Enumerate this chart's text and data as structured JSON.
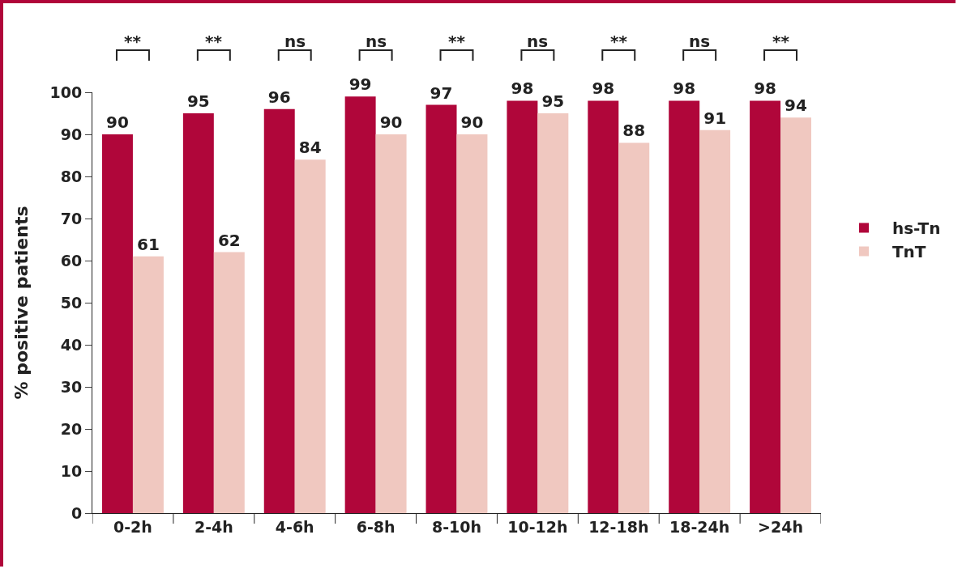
{
  "chart_data": {
    "type": "bar",
    "ylabel": "% positive patients",
    "categories": [
      "0-2h",
      "2-4h",
      "4-6h",
      "6-8h",
      "8-10h",
      "10-12h",
      "12-18h",
      "18-24h",
      ">24h"
    ],
    "series": [
      {
        "name": "hs-Tn",
        "color": "#b0063a",
        "values": [
          90,
          95,
          96,
          99,
          97,
          98,
          98,
          98,
          98
        ]
      },
      {
        "name": "TnT",
        "color": "#f0c8c0",
        "values": [
          61,
          62,
          84,
          90,
          90,
          95,
          88,
          91,
          94
        ]
      }
    ],
    "ylim": [
      0,
      100
    ],
    "yticks": [
      0,
      10,
      20,
      30,
      40,
      50,
      60,
      70,
      80,
      90,
      100
    ],
    "data_labels": true,
    "grid": false,
    "legend": "right",
    "annotations": [
      "**",
      "**",
      "ns",
      "ns",
      "**",
      "ns",
      "**",
      "ns",
      "**"
    ]
  }
}
